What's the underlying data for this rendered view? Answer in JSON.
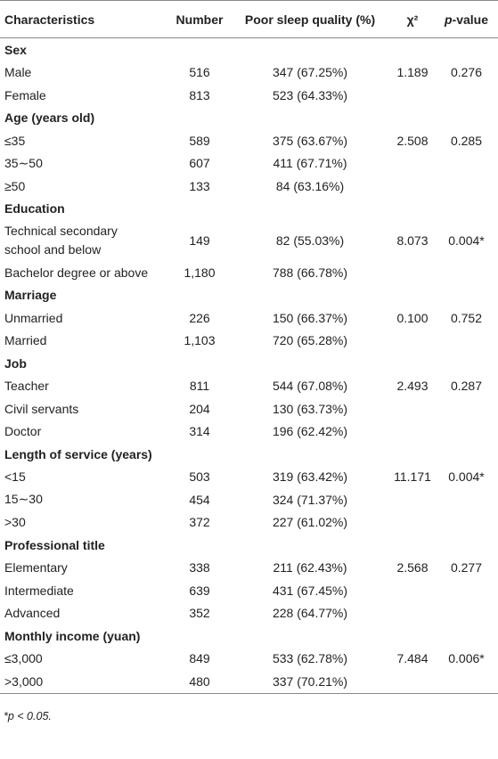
{
  "table": {
    "header": [
      "Characteristics",
      "Number",
      "Poor sleep quality (%)",
      "χ²",
      {
        "italic": "p",
        "text": "-value"
      }
    ],
    "groups": [
      {
        "title": "Sex",
        "rows": [
          [
            "Male",
            "516",
            "347 (67.25%)",
            "1.189",
            "0.276"
          ],
          [
            "Female",
            "813",
            "523 (64.33%)"
          ]
        ]
      },
      {
        "title": "Age (years old)",
        "rows": [
          [
            "≤35",
            "589",
            "375 (63.67%)",
            "2.508",
            "0.285"
          ],
          [
            "35∼50",
            "607",
            "411 (67.71%)"
          ],
          [
            "≥50",
            "133",
            "84 (63.16%)"
          ]
        ]
      },
      {
        "title": "Education",
        "rows": [
          [
            "Technical secondary school and below",
            "149",
            "82 (55.03%)",
            "8.073",
            "0.004*"
          ],
          [
            "Bachelor degree or above",
            "1,180",
            "788 (66.78%)"
          ]
        ]
      },
      {
        "title": "Marriage",
        "rows": [
          [
            "Unmarried",
            "226",
            "150 (66.37%)",
            "0.100",
            "0.752"
          ],
          [
            "Married",
            "1,103",
            "720 (65.28%)"
          ]
        ]
      },
      {
        "title": "Job",
        "rows": [
          [
            "Teacher",
            "811",
            "544 (67.08%)",
            "2.493",
            "0.287"
          ],
          [
            "Civil servants",
            "204",
            "130 (63.73%)"
          ],
          [
            "Doctor",
            "314",
            "196 (62.42%)"
          ]
        ]
      },
      {
        "title": "Length of service (years)",
        "rows": [
          [
            "<15",
            "503",
            "319 (63.42%)",
            "11.171",
            "0.004*"
          ],
          [
            "15∼30",
            "454",
            "324 (71.37%)"
          ],
          [
            ">30",
            "372",
            "227 (61.02%)"
          ]
        ]
      },
      {
        "title": "Professional title",
        "rows": [
          [
            "Elementary",
            "338",
            "211 (62.43%)",
            "2.568",
            "0.277"
          ],
          [
            "Intermediate",
            "639",
            "431 (67.45%)"
          ],
          [
            "Advanced",
            "352",
            "228 (64.77%)"
          ]
        ]
      },
      {
        "title": "Monthly income (yuan)",
        "rows": [
          [
            "≤3,000",
            "849",
            "533 (62.78%)",
            "7.484",
            "0.006*"
          ],
          [
            ">3,000",
            "480",
            "337 (70.21%)"
          ]
        ]
      }
    ],
    "footnote": "*p < 0.05."
  }
}
